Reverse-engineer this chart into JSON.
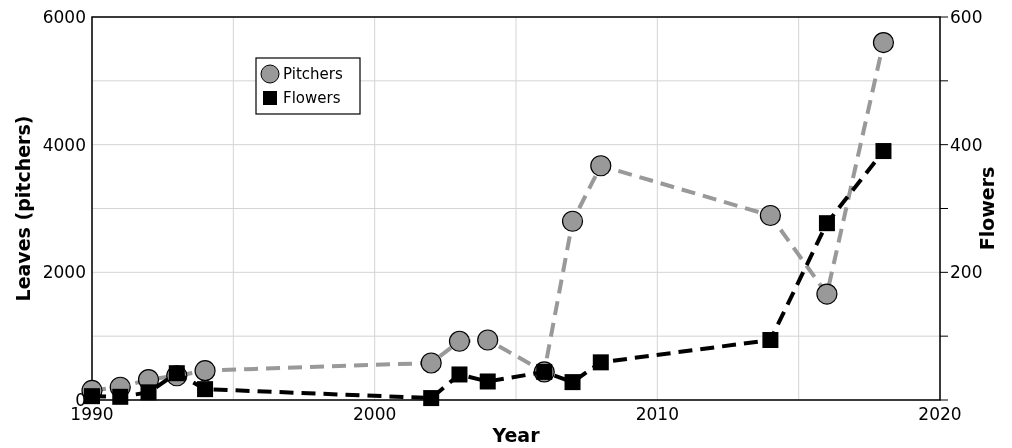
{
  "chart_data": {
    "type": "line",
    "xlabel": "Year",
    "ylabel": "Leaves (pitchers)",
    "y2label": "Flowers",
    "x": [
      1990,
      1991,
      1992,
      1993,
      1994,
      2002,
      2003,
      2004,
      2006,
      2007,
      2008,
      2014,
      2016,
      2018
    ],
    "series": [
      {
        "name": "Pitchers",
        "color": "#999999",
        "marker": "circle",
        "values": [
          150,
          200,
          320,
          380,
          460,
          580,
          920,
          940,
          440,
          2800,
          3670,
          2890,
          1660,
          5600
        ]
      },
      {
        "name": "Flowers",
        "color": "#000000",
        "marker": "square",
        "axis": "y2",
        "values": [
          6,
          5,
          12,
          42,
          17,
          3,
          40,
          29,
          44,
          28,
          59,
          94,
          277,
          390
        ]
      }
    ],
    "xlim": [
      1990,
      2020
    ],
    "xticks": [
      1990,
      {
        "value": 1995,
        "label": null
      },
      2000,
      {
        "value": 2005,
        "label": null
      },
      2010,
      {
        "value": 2015,
        "label": null
      },
      2020
    ],
    "ylim": [
      0,
      6000
    ],
    "yticks": [
      0,
      {
        "value": 1000,
        "label": null
      },
      2000,
      {
        "value": 3000,
        "label": null
      },
      4000,
      {
        "value": 5000,
        "label": null
      },
      6000
    ],
    "y2lim": [
      0,
      600
    ],
    "y2ticks": [
      {
        "value": 0,
        "label": null
      },
      {
        "value": 100,
        "label": null
      },
      200,
      {
        "value": 300,
        "label": null
      },
      400,
      {
        "value": 500,
        "label": null
      },
      600
    ],
    "grid": true,
    "legend": "top left",
    "line_style": "dashed"
  }
}
